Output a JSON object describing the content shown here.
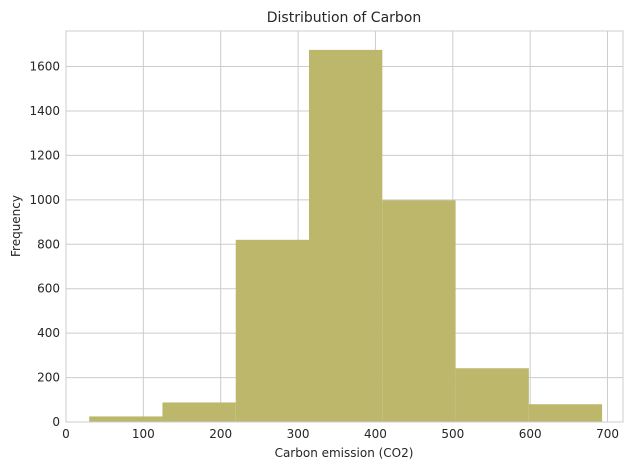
{
  "chart_data": {
    "type": "bar",
    "subtype": "histogram",
    "title": "Distribution of Carbon",
    "xlabel": "Carbon emission (CO2)",
    "ylabel": "Frequency",
    "bins": [
      {
        "start": 30,
        "end": 124.7,
        "count": 25
      },
      {
        "start": 124.7,
        "end": 219.4,
        "count": 88
      },
      {
        "start": 219.4,
        "end": 314.1,
        "count": 820
      },
      {
        "start": 314.1,
        "end": 408.9,
        "count": 1675
      },
      {
        "start": 408.9,
        "end": 503.6,
        "count": 998
      },
      {
        "start": 503.6,
        "end": 598.3,
        "count": 242
      },
      {
        "start": 598.3,
        "end": 693,
        "count": 80
      }
    ],
    "xlim": [
      0,
      720
    ],
    "ylim": [
      0,
      1760
    ],
    "xticks": [
      0,
      100,
      200,
      300,
      400,
      500,
      600,
      700
    ],
    "yticks": [
      0,
      200,
      400,
      600,
      800,
      1000,
      1200,
      1400,
      1600
    ],
    "grid": true,
    "bar_color": "#bdb76b"
  }
}
